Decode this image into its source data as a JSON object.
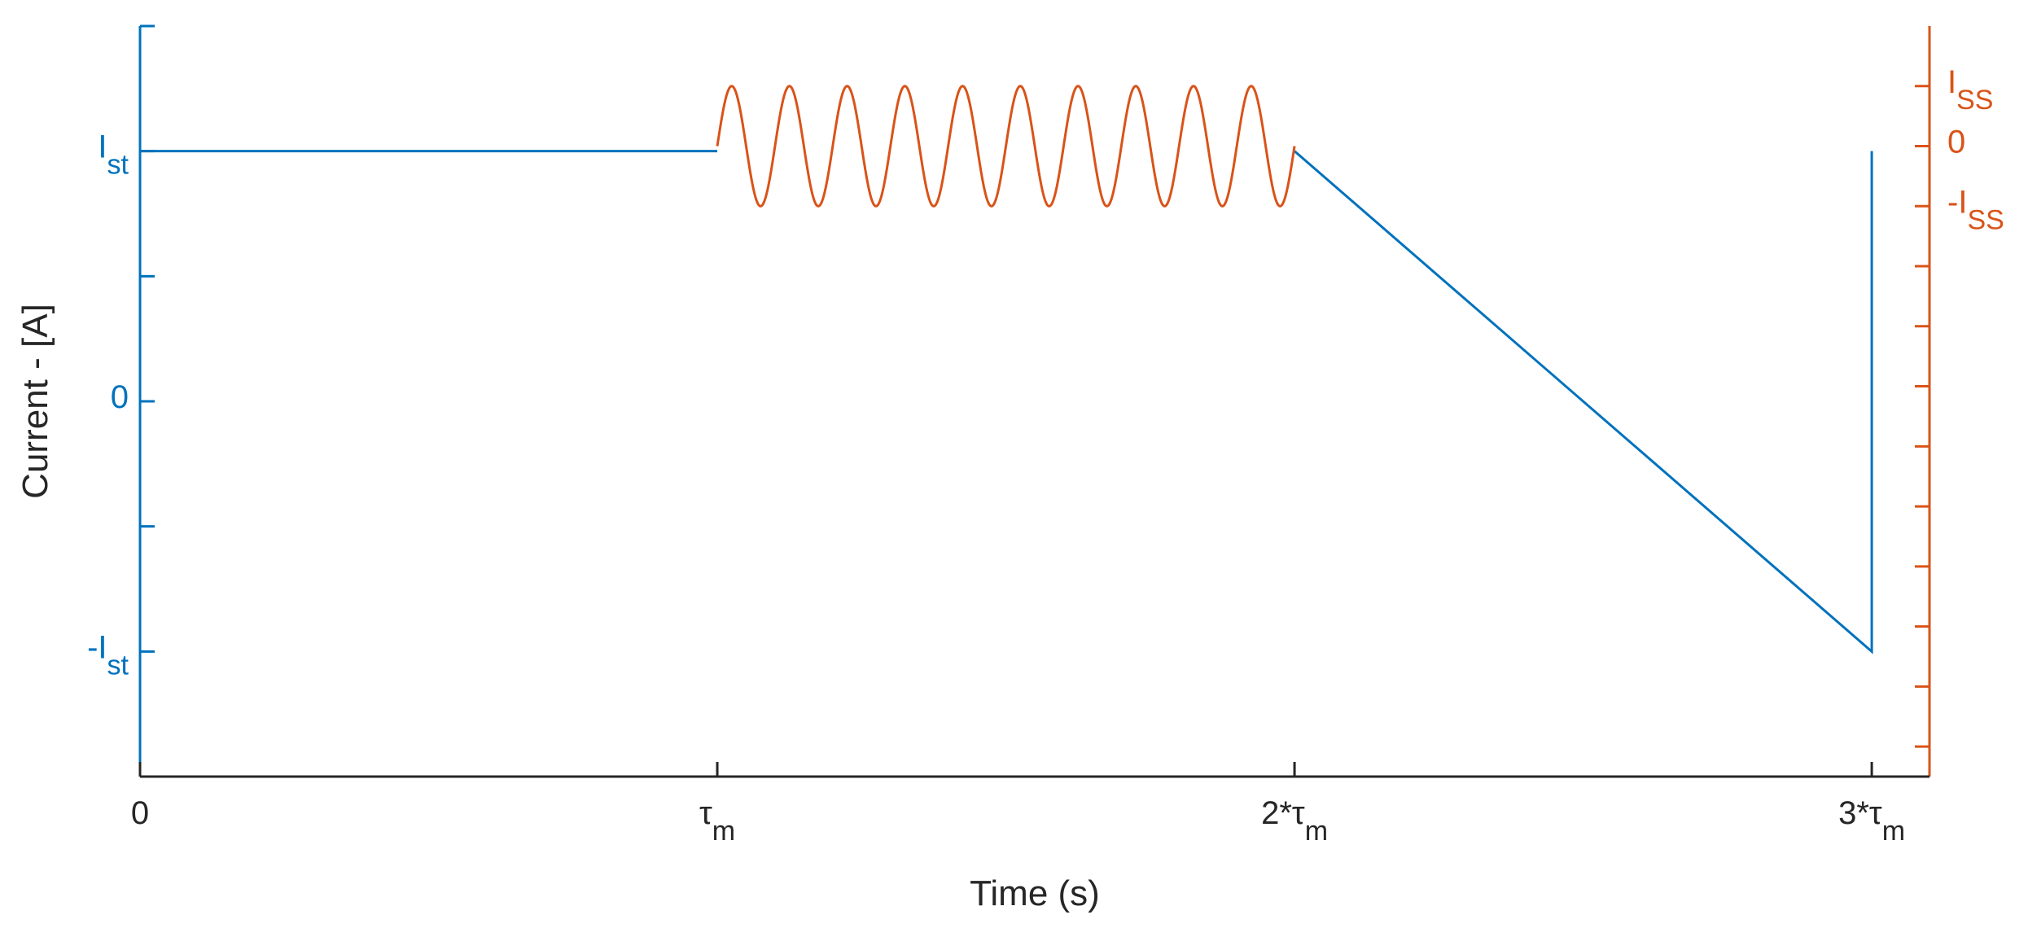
{
  "chart_data": {
    "type": "line",
    "xlabel": "Time (s)",
    "ylabel": "Current - [A]",
    "x_unit": "tau_m",
    "xlim": [
      0,
      3.1
    ],
    "x_ticks": [
      {
        "value": 0,
        "label": "0",
        "sub": ""
      },
      {
        "value": 1,
        "label": "τ",
        "sub": "m"
      },
      {
        "value": 2,
        "label": "2*τ",
        "sub": "m"
      },
      {
        "value": 3,
        "label": "3*τ",
        "sub": "m"
      }
    ],
    "left_axis": {
      "color": "#0072BD",
      "ylim": [
        -1.5,
        1.5
      ],
      "ticks": [
        {
          "value": 1,
          "label": "I",
          "sub": "st"
        },
        {
          "value": 0,
          "label": "0",
          "sub": ""
        },
        {
          "value": -1,
          "label": "-I",
          "sub": "st"
        }
      ],
      "minor_ticks": [
        -1.5,
        -1,
        -0.5,
        0,
        0.5,
        1,
        1.5
      ]
    },
    "right_axis": {
      "color": "#D95319",
      "ylim": [
        -10.5,
        2
      ],
      "ticks": [
        {
          "value": 1,
          "label": "I",
          "sub": "SS"
        },
        {
          "value": 0,
          "label": "0",
          "sub": ""
        },
        {
          "value": -1,
          "label": "-I",
          "sub": "SS"
        }
      ],
      "minor_ticks": [
        -10,
        -9,
        -8,
        -7,
        -6,
        -5,
        -4,
        -3,
        -2,
        -1,
        0,
        1
      ]
    },
    "series": [
      {
        "axis": "left",
        "color": "#0072BD",
        "segments": [
          {
            "x": [
              0,
              1
            ],
            "y": [
              1,
              1
            ]
          },
          {
            "x": [
              2,
              3,
              3
            ],
            "y": [
              1,
              -1,
              1
            ]
          }
        ]
      },
      {
        "axis": "right",
        "color": "#D95319",
        "function": "sine",
        "x_start": 1,
        "x_end": 2,
        "amplitude": 1,
        "cycles": 10,
        "start_phase": 0
      }
    ]
  }
}
